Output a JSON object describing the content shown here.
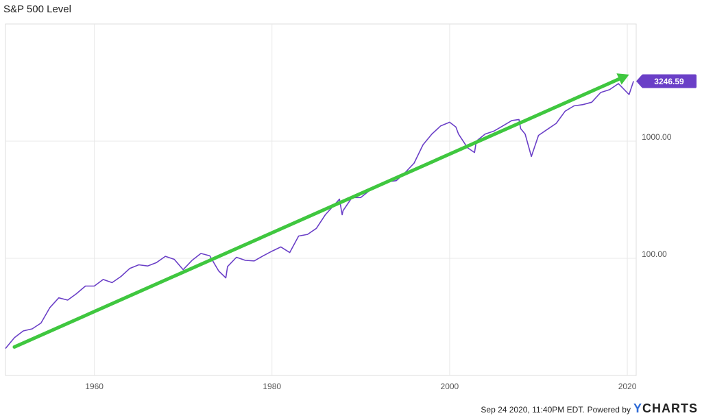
{
  "chart_data": {
    "type": "line",
    "title": "S&P 500 Level",
    "scale": "log",
    "x_ticks": [
      "1960",
      "1980",
      "2000",
      "2020"
    ],
    "y_ticks": [
      "100.00",
      "1000.00"
    ],
    "last_value_label": "3246.59",
    "colors": {
      "line": "#6a3fc7",
      "trend": "#3fc73f",
      "badge": "#6a3fc7",
      "grid": "#e8e8e8"
    },
    "x_range": [
      1950,
      2021
    ],
    "y_range": [
      10,
      10000
    ],
    "series": [
      {
        "x": [
          1950,
          1951,
          1952,
          1953,
          1954,
          1955,
          1956,
          1957,
          1958,
          1959,
          1960,
          1961,
          1962,
          1963,
          1964,
          1965,
          1966,
          1967,
          1968,
          1969,
          1970,
          1971,
          1972,
          1973,
          1974,
          1974.8,
          1975,
          1976,
          1977,
          1978,
          1979,
          1980,
          1981,
          1982,
          1983,
          1984,
          1985,
          1986,
          1987.6,
          1987.9,
          1988,
          1989,
          1990,
          1991,
          1992,
          1993,
          1994,
          1995,
          1996,
          1997,
          1998,
          1999,
          2000,
          2000.7,
          2001,
          2002,
          2002.8,
          2003,
          2004,
          2005,
          2006,
          2007,
          2007.8,
          2008,
          2008.5,
          2009.2,
          2010,
          2011,
          2012,
          2013,
          2014,
          2015,
          2016,
          2017,
          2018,
          2019,
          2020.2,
          2020.7
        ],
        "values": [
          17,
          21,
          24,
          25,
          28,
          38,
          46,
          44,
          50,
          58,
          58,
          66,
          62,
          70,
          82,
          88,
          86,
          92,
          104,
          98,
          80,
          96,
          110,
          105,
          78,
          68,
          85,
          102,
          96,
          95,
          105,
          115,
          125,
          112,
          155,
          160,
          180,
          235,
          320,
          235,
          255,
          330,
          330,
          380,
          420,
          450,
          460,
          540,
          650,
          930,
          1150,
          1350,
          1450,
          1320,
          1150,
          880,
          800,
          1000,
          1150,
          1220,
          1350,
          1500,
          1530,
          1280,
          1150,
          740,
          1120,
          1260,
          1420,
          1800,
          2000,
          2050,
          2150,
          2600,
          2750,
          3100,
          2500,
          3246.59
        ]
      }
    ],
    "trend_line": {
      "x": [
        1951,
        2020.2
      ],
      "values": [
        17.5,
        3700
      ]
    }
  },
  "footer": {
    "timestamp": "Sep 24 2020, 11:40PM EDT.",
    "powered_by": "Powered by",
    "brand_y": "Y",
    "brand_rest": "CHARTS"
  }
}
